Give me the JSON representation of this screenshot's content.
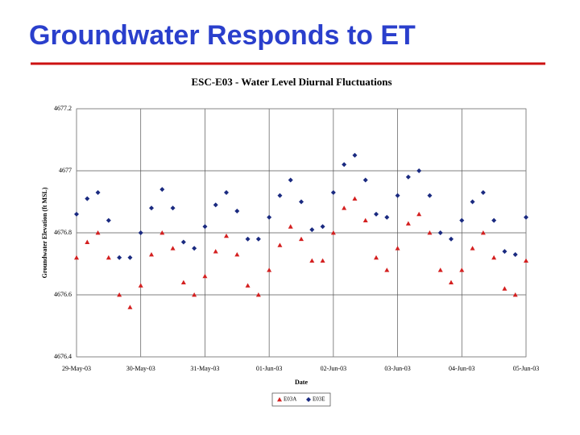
{
  "slide": {
    "title": "Groundwater Responds to ET"
  },
  "chart_data": {
    "type": "scatter",
    "title": "ESC-E03 - Water Level Diurnal Fluctuations",
    "x_label": "Date",
    "y_label": "Groundwater Elevation (ft MSL)",
    "x": [
      "2003-05-29T00:00",
      "2003-05-29T04:00",
      "2003-05-29T08:00",
      "2003-05-29T12:00",
      "2003-05-29T16:00",
      "2003-05-29T20:00",
      "2003-05-30T00:00",
      "2003-05-30T04:00",
      "2003-05-30T08:00",
      "2003-05-30T12:00",
      "2003-05-30T16:00",
      "2003-05-30T20:00",
      "2003-05-31T00:00",
      "2003-05-31T04:00",
      "2003-05-31T08:00",
      "2003-05-31T12:00",
      "2003-05-31T16:00",
      "2003-05-31T20:00",
      "2003-06-01T00:00",
      "2003-06-01T04:00",
      "2003-06-01T08:00",
      "2003-06-01T12:00",
      "2003-06-01T16:00",
      "2003-06-01T20:00",
      "2003-06-02T00:00",
      "2003-06-02T04:00",
      "2003-06-02T08:00",
      "2003-06-02T12:00",
      "2003-06-02T16:00",
      "2003-06-02T20:00",
      "2003-06-03T00:00",
      "2003-06-03T04:00",
      "2003-06-03T08:00",
      "2003-06-03T12:00",
      "2003-06-03T16:00",
      "2003-06-03T20:00",
      "2003-06-04T00:00",
      "2003-06-04T04:00",
      "2003-06-04T08:00",
      "2003-06-04T12:00",
      "2003-06-04T16:00",
      "2003-06-04T20:00",
      "2003-06-05T00:00"
    ],
    "series": [
      {
        "name": "E03A",
        "color": "#d42020",
        "marker": "triangle",
        "values": [
          4676.72,
          4676.77,
          4676.8,
          4676.72,
          4676.6,
          4676.56,
          4676.63,
          4676.73,
          4676.8,
          4676.75,
          4676.64,
          4676.6,
          4676.66,
          4676.74,
          4676.79,
          4676.73,
          4676.63,
          4676.6,
          4676.68,
          4676.76,
          4676.82,
          4676.78,
          4676.71,
          4676.71,
          4676.8,
          4676.88,
          4676.91,
          4676.84,
          4676.72,
          4676.68,
          4676.75,
          4676.83,
          4676.86,
          4676.8,
          4676.68,
          4676.64,
          4676.68,
          4676.75,
          4676.8,
          4676.72,
          4676.62,
          4676.6,
          4676.71
        ]
      },
      {
        "name": "E03E",
        "color": "#1a2a80",
        "marker": "diamond",
        "values": [
          4676.86,
          4676.91,
          4676.93,
          4676.84,
          4676.72,
          4676.72,
          4676.8,
          4676.88,
          4676.94,
          4676.88,
          4676.77,
          4676.75,
          4676.82,
          4676.89,
          4676.93,
          4676.87,
          4676.78,
          4676.78,
          4676.85,
          4676.92,
          4676.97,
          4676.9,
          4676.81,
          4676.82,
          4676.93,
          4677.02,
          4677.05,
          4676.97,
          4676.86,
          4676.85,
          4676.92,
          4676.98,
          4677.0,
          4676.92,
          4676.8,
          4676.78,
          4676.84,
          4676.9,
          4676.93,
          4676.84,
          4676.74,
          4676.73,
          4676.85
        ]
      }
    ],
    "xlim": [
      "2003-05-29T00:00",
      "2003-06-05T00:00"
    ],
    "xticks": [
      {
        "value": "2003-05-29T00:00",
        "label": "29-May-03"
      },
      {
        "value": "2003-05-30T00:00",
        "label": "30-May-03"
      },
      {
        "value": "2003-05-31T00:00",
        "label": "31-May-03"
      },
      {
        "value": "2003-06-01T00:00",
        "label": "01-Jun-03"
      },
      {
        "value": "2003-06-02T00:00",
        "label": "02-Jun-03"
      },
      {
        "value": "2003-06-03T00:00",
        "label": "03-Jun-03"
      },
      {
        "value": "2003-06-04T00:00",
        "label": "04-Jun-03"
      },
      {
        "value": "2003-06-05T00:00",
        "label": "05-Jun-03"
      }
    ],
    "ylim": [
      4676.4,
      4677.2
    ],
    "yticks": [
      4676.4,
      4676.6,
      4676.8,
      4677,
      4677.2
    ],
    "grid": true,
    "legend": "bottom"
  }
}
